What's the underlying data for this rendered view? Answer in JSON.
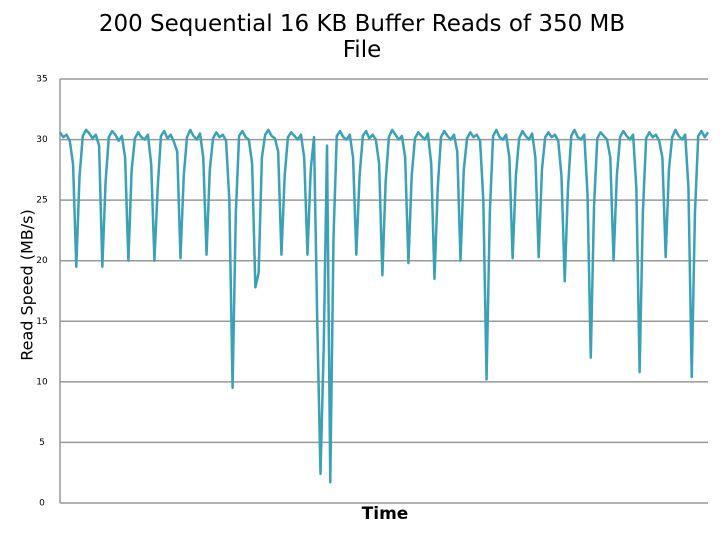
{
  "chart_data": {
    "type": "line",
    "title": "200 Sequential 16 KB Buffer Reads of 350 MB File",
    "x_label": "Time",
    "y_label": "Read Speed (MB/s)",
    "ylim": [
      0,
      35
    ],
    "yticks": [
      0,
      5,
      10,
      15,
      20,
      25,
      30,
      35
    ],
    "grid": true,
    "series": [
      {
        "name": "Read Speed",
        "color": "#3aa1b6",
        "values": [
          30.6,
          30.2,
          30.4,
          29.9,
          28.0,
          19.5,
          27.0,
          30.3,
          30.8,
          30.5,
          30.1,
          30.4,
          29.5,
          19.5,
          26.5,
          30.2,
          30.7,
          30.4,
          29.9,
          30.3,
          28.5,
          20.0,
          27.5,
          30.1,
          30.6,
          30.2,
          30.0,
          30.4,
          28.0,
          20.0,
          26.0,
          30.3,
          30.7,
          30.1,
          30.4,
          29.8,
          29.0,
          20.2,
          27.0,
          30.2,
          30.8,
          30.3,
          30.0,
          30.5,
          28.5,
          20.5,
          27.5,
          30.1,
          30.6,
          30.2,
          30.4,
          29.9,
          25.0,
          9.5,
          24.0,
          30.3,
          30.7,
          30.2,
          30.0,
          28.0,
          17.8,
          19.0,
          28.5,
          30.4,
          30.8,
          30.3,
          30.1,
          29.0,
          20.5,
          27.0,
          30.2,
          30.6,
          30.3,
          30.0,
          30.4,
          28.5,
          20.5,
          27.5,
          30.2,
          15.0,
          2.4,
          13.0,
          29.5,
          1.7,
          22.0,
          30.3,
          30.7,
          30.2,
          30.0,
          30.4,
          28.5,
          20.5,
          27.0,
          30.3,
          30.7,
          30.1,
          30.4,
          30.0,
          28.0,
          18.8,
          26.5,
          30.2,
          30.8,
          30.4,
          30.0,
          30.3,
          28.5,
          19.8,
          27.0,
          30.1,
          30.6,
          30.3,
          30.0,
          30.5,
          28.0,
          18.5,
          26.0,
          30.2,
          30.7,
          30.3,
          30.0,
          30.4,
          29.0,
          20.0,
          27.5,
          30.1,
          30.6,
          30.2,
          30.4,
          29.9,
          25.0,
          10.2,
          24.0,
          30.3,
          30.8,
          30.2,
          30.0,
          30.4,
          28.5,
          20.2,
          27.0,
          30.1,
          30.7,
          30.3,
          30.0,
          30.5,
          28.5,
          20.3,
          27.5,
          30.2,
          30.6,
          30.2,
          30.4,
          29.9,
          27.0,
          18.3,
          26.0,
          30.3,
          30.8,
          30.2,
          30.0,
          30.4,
          25.5,
          12.0,
          24.5,
          30.1,
          30.6,
          30.3,
          30.0,
          28.5,
          20.0,
          27.0,
          30.2,
          30.7,
          30.3,
          30.0,
          30.4,
          26.0,
          10.8,
          24.0,
          30.1,
          30.6,
          30.2,
          30.4,
          29.9,
          28.5,
          20.3,
          27.5,
          30.2,
          30.8,
          30.3,
          30.0,
          30.4,
          26.0,
          10.4,
          24.0,
          30.3,
          30.7,
          30.2,
          30.6
        ]
      }
    ]
  }
}
